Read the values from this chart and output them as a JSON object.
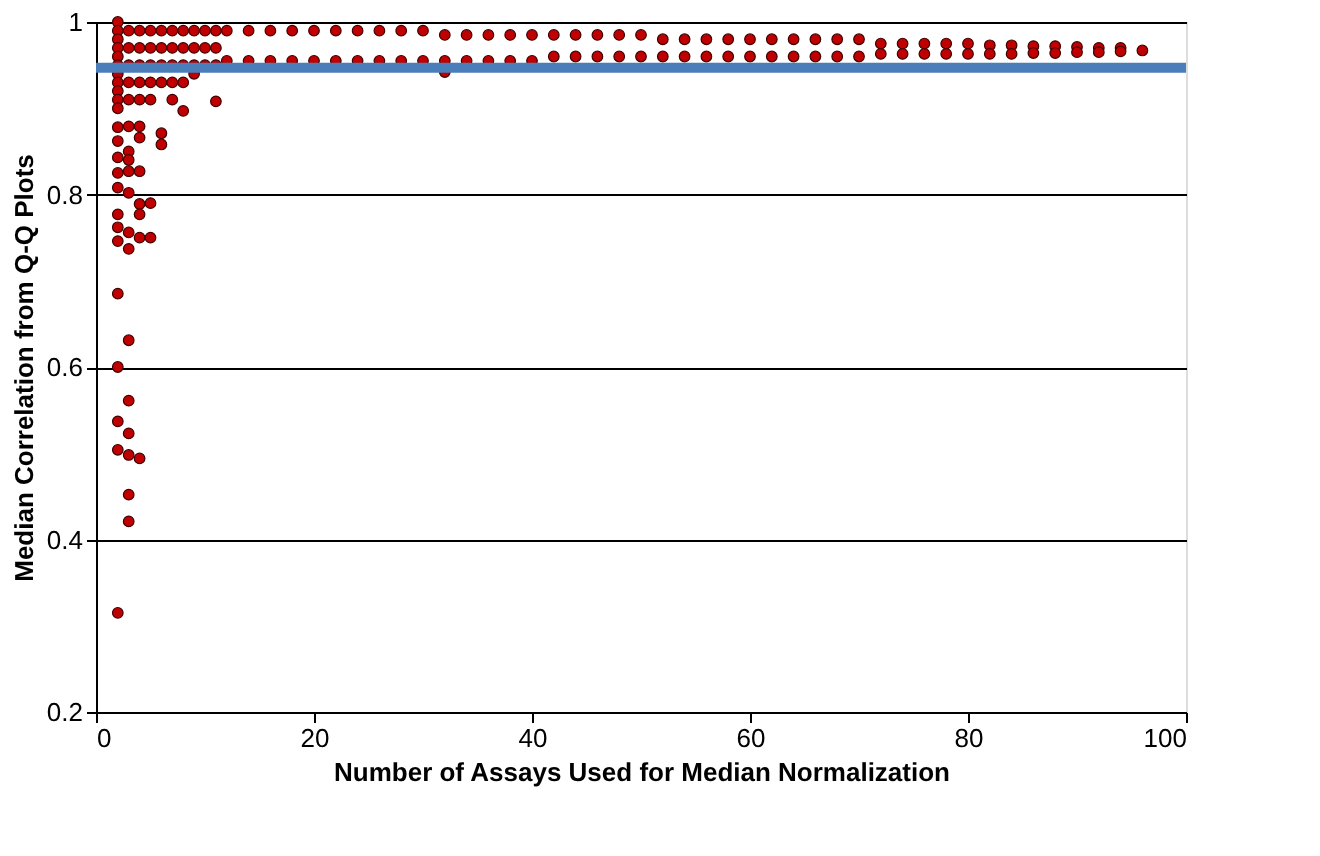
{
  "chart_data": {
    "type": "scatter",
    "xlabel": "Number of Assays Used for Median Normalization",
    "ylabel": "Median Correlation from Q-Q Plots",
    "xlim": [
      0,
      100
    ],
    "xticks": [
      0,
      20,
      40,
      60,
      80,
      100
    ],
    "ylim": [
      0.2,
      1
    ],
    "yticks": [
      0.2,
      0.4,
      0.6,
      0.8,
      1
    ],
    "grid": "y",
    "marker": "circle",
    "ref_lines": [
      {
        "axis": "y",
        "value": 0.947,
        "color": "#4a7ebb"
      }
    ],
    "series": [
      {
        "color": "#c00000",
        "x": [
          2,
          2,
          2,
          2,
          2,
          2,
          2,
          2,
          2,
          2,
          2,
          2,
          2,
          2,
          2,
          2,
          2,
          2,
          2,
          2,
          2,
          2,
          2,
          2,
          3,
          3,
          3,
          3,
          3,
          3,
          3,
          3,
          3,
          3,
          3,
          3,
          3,
          3,
          3,
          3,
          3,
          3,
          4,
          4,
          4,
          4,
          4,
          4,
          4,
          4,
          4,
          4,
          4,
          4,
          5,
          5,
          5,
          5,
          5,
          5,
          5,
          6,
          6,
          6,
          6,
          6,
          6,
          7,
          7,
          7,
          7,
          7,
          8,
          8,
          8,
          8,
          8,
          9,
          9,
          9,
          9,
          10,
          10,
          10,
          11,
          11,
          11,
          11,
          12,
          12,
          14,
          14,
          16,
          16,
          18,
          18,
          20,
          20,
          22,
          22,
          24,
          24,
          26,
          26,
          28,
          28,
          30,
          30,
          32,
          32,
          32,
          34,
          34,
          36,
          36,
          38,
          38,
          40,
          40,
          42,
          42,
          44,
          44,
          46,
          46,
          48,
          48,
          50,
          50,
          52,
          52,
          54,
          54,
          56,
          56,
          58,
          58,
          60,
          60,
          62,
          62,
          64,
          64,
          66,
          66,
          68,
          68,
          70,
          70,
          72,
          72,
          74,
          74,
          76,
          76,
          78,
          78,
          80,
          80,
          82,
          82,
          84,
          84,
          86,
          86,
          88,
          88,
          90,
          90,
          92,
          92,
          94,
          94,
          96
        ],
        "values": [
          1.0,
          0.99,
          0.98,
          0.97,
          0.96,
          0.95,
          0.94,
          0.93,
          0.92,
          0.91,
          0.9,
          0.878,
          0.862,
          0.843,
          0.825,
          0.808,
          0.777,
          0.762,
          0.746,
          0.685,
          0.6,
          0.537,
          0.504,
          0.315,
          0.99,
          0.97,
          0.95,
          0.93,
          0.91,
          0.879,
          0.85,
          0.84,
          0.827,
          0.802,
          0.756,
          0.737,
          0.631,
          0.561,
          0.523,
          0.498,
          0.452,
          0.421,
          0.99,
          0.97,
          0.95,
          0.93,
          0.91,
          0.879,
          0.866,
          0.827,
          0.789,
          0.777,
          0.75,
          0.494,
          0.99,
          0.97,
          0.95,
          0.93,
          0.91,
          0.79,
          0.75,
          0.99,
          0.97,
          0.95,
          0.93,
          0.871,
          0.858,
          0.99,
          0.97,
          0.95,
          0.93,
          0.91,
          0.99,
          0.97,
          0.95,
          0.93,
          0.897,
          0.99,
          0.97,
          0.95,
          0.94,
          0.99,
          0.97,
          0.95,
          0.99,
          0.97,
          0.95,
          0.908,
          0.99,
          0.955,
          0.99,
          0.955,
          0.99,
          0.955,
          0.99,
          0.955,
          0.99,
          0.955,
          0.99,
          0.955,
          0.99,
          0.955,
          0.99,
          0.955,
          0.99,
          0.955,
          0.99,
          0.955,
          0.985,
          0.955,
          0.942,
          0.985,
          0.955,
          0.985,
          0.955,
          0.985,
          0.955,
          0.985,
          0.955,
          0.985,
          0.96,
          0.985,
          0.96,
          0.985,
          0.96,
          0.985,
          0.96,
          0.985,
          0.96,
          0.98,
          0.96,
          0.98,
          0.96,
          0.98,
          0.96,
          0.98,
          0.96,
          0.98,
          0.96,
          0.98,
          0.96,
          0.98,
          0.96,
          0.98,
          0.96,
          0.98,
          0.96,
          0.98,
          0.96,
          0.975,
          0.963,
          0.975,
          0.963,
          0.975,
          0.963,
          0.975,
          0.963,
          0.975,
          0.963,
          0.973,
          0.963,
          0.973,
          0.963,
          0.972,
          0.964,
          0.972,
          0.964,
          0.971,
          0.965,
          0.97,
          0.965,
          0.97,
          0.966,
          0.967
        ]
      }
    ]
  }
}
